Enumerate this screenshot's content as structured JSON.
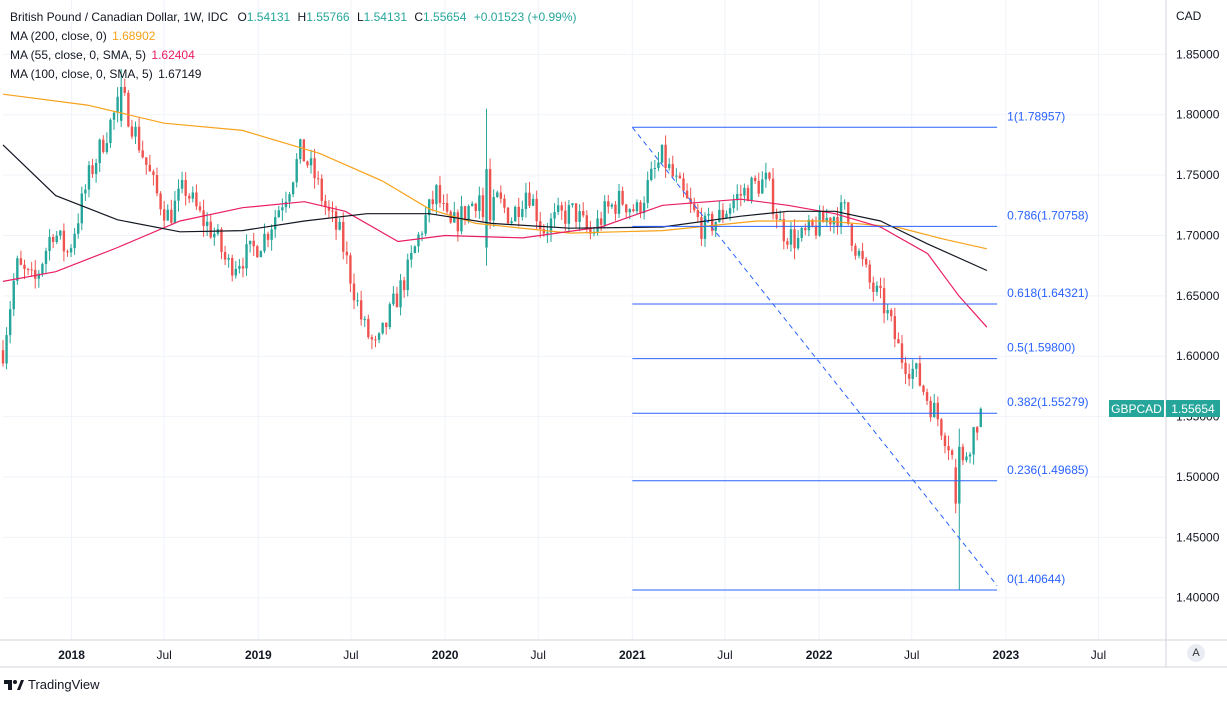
{
  "legend": {
    "title": "British Pound / Canadian Dollar, 1W, IDC",
    "o_label": "O",
    "o": "1.54131",
    "h_label": "H",
    "h": "1.55766",
    "l_label": "L",
    "l": "1.54131",
    "c_label": "C",
    "c": "1.55654",
    "change": "+0.01523 (+0.99%)",
    "ma200_label": "MA (200, close, 0)",
    "ma200_value": "1.68902",
    "ma55_label": "MA (55, close, 0, SMA, 5)",
    "ma55_value": "1.62404",
    "ma100_label": "MA (100, close, 0, SMA, 5)",
    "ma100_value": "1.67149"
  },
  "colors": {
    "up": "#26a69a",
    "down": "#ef5350",
    "ma200": "#f7a21b",
    "ma55": "#e91e63",
    "ma100": "#131722",
    "fib": "#2962ff",
    "grid": "#f0f3fa",
    "axis_border": "#d1d4dc"
  },
  "footer": {
    "brand": "TradingView",
    "auto_button": "A"
  },
  "chart_data": {
    "type": "candlestick",
    "symbol": "GBPCAD",
    "last_price": "1.55654",
    "currency_label": "CAD",
    "x_start": "2017-08-20",
    "x_end": "2023-11-10",
    "ylim": [
      1.365,
      1.895
    ],
    "y_ticks": [
      "1.85000",
      "1.80000",
      "1.75000",
      "1.70000",
      "1.65000",
      "1.60000",
      "1.55000",
      "1.50000",
      "1.45000",
      "1.40000"
    ],
    "x_ticks": [
      {
        "label": "2018",
        "date": "2018-01-01"
      },
      {
        "label": "Jul",
        "date": "2018-07-01"
      },
      {
        "label": "2019",
        "date": "2019-01-01"
      },
      {
        "label": "Jul",
        "date": "2019-07-01"
      },
      {
        "label": "2020",
        "date": "2020-01-01"
      },
      {
        "label": "Jul",
        "date": "2020-07-01"
      },
      {
        "label": "2021",
        "date": "2021-01-01"
      },
      {
        "label": "Jul",
        "date": "2021-07-01"
      },
      {
        "label": "2022",
        "date": "2022-01-01"
      },
      {
        "label": "Jul",
        "date": "2022-07-01"
      },
      {
        "label": "2023",
        "date": "2023-01-01"
      },
      {
        "label": "Jul",
        "date": "2023-07-01"
      }
    ],
    "price_path": [
      [
        "2017-08-20",
        1.605
      ],
      [
        "2017-09-15",
        1.675
      ],
      [
        "2017-10-20",
        1.66
      ],
      [
        "2017-11-25",
        1.705
      ],
      [
        "2017-12-25",
        1.685
      ],
      [
        "2018-02-05",
        1.75
      ],
      [
        "2018-03-15",
        1.79
      ],
      [
        "2018-04-10",
        1.815
      ],
      [
        "2018-05-10",
        1.78
      ],
      [
        "2018-06-15",
        1.735
      ],
      [
        "2018-07-10",
        1.715
      ],
      [
        "2018-08-10",
        1.74
      ],
      [
        "2018-09-10",
        1.715
      ],
      [
        "2018-10-10",
        1.7
      ],
      [
        "2018-11-01",
        1.675
      ],
      [
        "2018-12-15",
        1.685
      ],
      [
        "2019-01-15",
        1.7
      ],
      [
        "2019-03-01",
        1.74
      ],
      [
        "2019-03-25",
        1.77
      ],
      [
        "2019-04-20",
        1.75
      ],
      [
        "2019-05-15",
        1.72
      ],
      [
        "2019-06-10",
        1.7
      ],
      [
        "2019-07-01",
        1.665
      ],
      [
        "2019-07-25",
        1.625
      ],
      [
        "2019-08-20",
        1.605
      ],
      [
        "2019-09-20",
        1.64
      ],
      [
        "2019-10-20",
        1.67
      ],
      [
        "2019-11-15",
        1.705
      ],
      [
        "2019-12-15",
        1.735
      ],
      [
        "2020-01-10",
        1.705
      ],
      [
        "2020-02-10",
        1.72
      ],
      [
        "2020-03-10",
        1.735
      ],
      [
        "2020-03-20",
        1.695
      ],
      [
        "2020-04-10",
        1.73
      ],
      [
        "2020-05-10",
        1.715
      ],
      [
        "2020-06-10",
        1.74
      ],
      [
        "2020-07-10",
        1.705
      ],
      [
        "2020-08-10",
        1.715
      ],
      [
        "2020-09-10",
        1.72
      ],
      [
        "2020-10-10",
        1.7
      ],
      [
        "2020-11-10",
        1.72
      ],
      [
        "2020-12-10",
        1.73
      ],
      [
        "2021-01-10",
        1.72
      ],
      [
        "2021-02-10",
        1.75
      ],
      [
        "2021-03-01",
        1.765
      ],
      [
        "2021-03-25",
        1.745
      ],
      [
        "2021-04-20",
        1.725
      ],
      [
        "2021-05-20",
        1.705
      ],
      [
        "2021-06-20",
        1.715
      ],
      [
        "2021-07-20",
        1.73
      ],
      [
        "2021-08-20",
        1.74
      ],
      [
        "2021-09-20",
        1.745
      ],
      [
        "2021-10-20",
        1.705
      ],
      [
        "2021-11-20",
        1.695
      ],
      [
        "2021-12-20",
        1.705
      ],
      [
        "2022-01-20",
        1.715
      ],
      [
        "2022-02-20",
        1.72
      ],
      [
        "2022-03-10",
        1.695
      ],
      [
        "2022-04-10",
        1.66
      ],
      [
        "2022-05-10",
        1.64
      ],
      [
        "2022-06-10",
        1.6
      ],
      [
        "2022-07-10",
        1.585
      ],
      [
        "2022-08-01",
        1.565
      ],
      [
        "2022-08-20",
        1.55
      ],
      [
        "2022-09-15",
        1.525
      ],
      [
        "2022-09-28",
        1.49
      ],
      [
        "2022-10-15",
        1.52
      ],
      [
        "2022-11-05",
        1.545
      ],
      [
        "2022-11-18",
        1.5565
      ]
    ],
    "special_candles": [
      {
        "date": "2018-04-08",
        "open": 1.795,
        "high": 1.838,
        "low": 1.79,
        "close": 1.823
      },
      {
        "date": "2020-03-22",
        "open": 1.69,
        "high": 1.805,
        "low": 1.675,
        "close": 1.755
      },
      {
        "date": "2022-09-25",
        "open": 1.508,
        "high": 1.515,
        "low": 1.47,
        "close": 1.478
      },
      {
        "date": "2022-10-02",
        "open": 1.478,
        "high": 1.54,
        "low": 1.406,
        "close": 1.525
      }
    ],
    "ma_series": [
      {
        "name": "MA (200, close, 0)",
        "color": "#f7a21b",
        "points": [
          [
            "2017-08-20",
            1.817
          ],
          [
            "2018-02-01",
            1.808
          ],
          [
            "2018-07-01",
            1.793
          ],
          [
            "2018-12-01",
            1.787
          ],
          [
            "2019-05-01",
            1.768
          ],
          [
            "2019-09-01",
            1.745
          ],
          [
            "2019-12-01",
            1.722
          ],
          [
            "2020-03-01",
            1.71
          ],
          [
            "2020-09-01",
            1.702
          ],
          [
            "2021-03-01",
            1.704
          ],
          [
            "2021-09-01",
            1.712
          ],
          [
            "2022-01-15",
            1.712
          ],
          [
            "2022-06-01",
            1.707
          ],
          [
            "2022-09-01",
            1.697
          ],
          [
            "2022-11-25",
            1.689
          ]
        ]
      },
      {
        "name": "MA (55, close, 0, SMA, 5)",
        "color": "#e91e63",
        "points": [
          [
            "2017-08-20",
            1.662
          ],
          [
            "2017-12-01",
            1.67
          ],
          [
            "2018-04-01",
            1.69
          ],
          [
            "2018-08-01",
            1.712
          ],
          [
            "2018-12-01",
            1.723
          ],
          [
            "2019-04-01",
            1.728
          ],
          [
            "2019-06-20",
            1.72
          ],
          [
            "2019-10-01",
            1.695
          ],
          [
            "2020-01-01",
            1.7
          ],
          [
            "2020-06-01",
            1.698
          ],
          [
            "2020-11-01",
            1.707
          ],
          [
            "2021-03-01",
            1.725
          ],
          [
            "2021-08-01",
            1.73
          ],
          [
            "2021-11-01",
            1.725
          ],
          [
            "2022-02-01",
            1.718
          ],
          [
            "2022-05-01",
            1.707
          ],
          [
            "2022-08-01",
            1.685
          ],
          [
            "2022-10-01",
            1.65
          ],
          [
            "2022-11-25",
            1.624
          ]
        ]
      },
      {
        "name": "MA (100, close, 0, SMA, 5)",
        "color": "#131722",
        "points": [
          [
            "2017-08-20",
            1.775
          ],
          [
            "2017-12-01",
            1.733
          ],
          [
            "2018-04-01",
            1.713
          ],
          [
            "2018-08-01",
            1.703
          ],
          [
            "2018-12-01",
            1.704
          ],
          [
            "2019-04-01",
            1.712
          ],
          [
            "2019-08-01",
            1.718
          ],
          [
            "2019-12-01",
            1.718
          ],
          [
            "2020-04-01",
            1.71
          ],
          [
            "2020-09-01",
            1.706
          ],
          [
            "2021-03-01",
            1.707
          ],
          [
            "2021-08-01",
            1.716
          ],
          [
            "2021-11-01",
            1.72
          ],
          [
            "2022-02-01",
            1.72
          ],
          [
            "2022-05-01",
            1.712
          ],
          [
            "2022-08-01",
            1.693
          ],
          [
            "2022-11-25",
            1.671
          ]
        ]
      }
    ],
    "fibonacci": {
      "x_start": "2021-01-01",
      "x_end": "2022-12-15",
      "trend_from": {
        "date": "2021-01-01",
        "price": 1.78957
      },
      "trend_to": {
        "date": "2022-12-15",
        "price": 1.41
      },
      "levels": [
        {
          "label": "1(1.78957)",
          "price": 1.78957
        },
        {
          "label": "0.786(1.70758)",
          "price": 1.70758
        },
        {
          "label": "0.618(1.64321)",
          "price": 1.64321
        },
        {
          "label": "0.5(1.59800)",
          "price": 1.598
        },
        {
          "label": "0.382(1.55279)",
          "price": 1.55279
        },
        {
          "label": "0.236(1.49685)",
          "price": 1.49685
        },
        {
          "label": "0(1.40644)",
          "price": 1.40644
        }
      ]
    }
  }
}
